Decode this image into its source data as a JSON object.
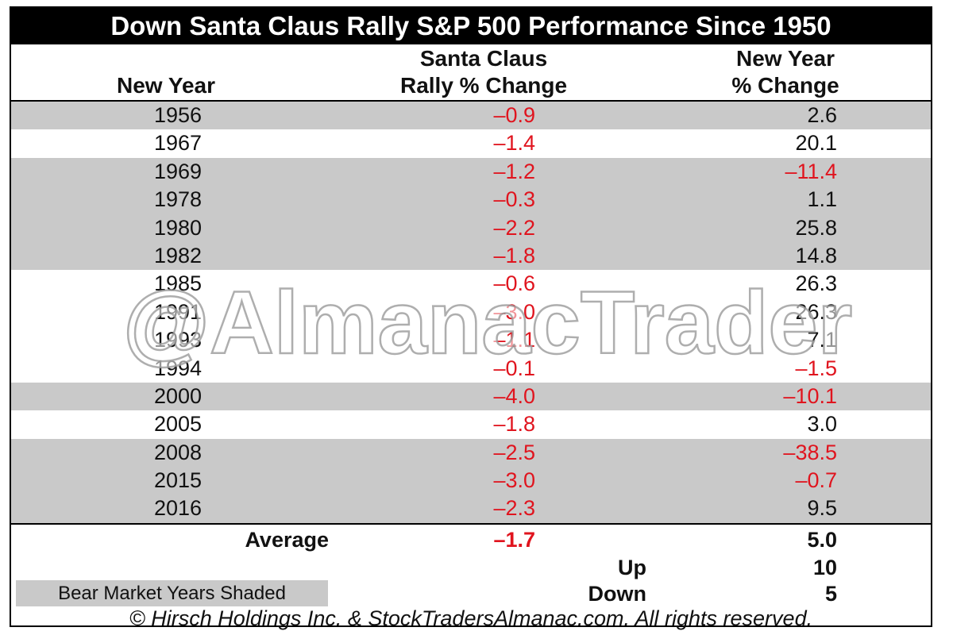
{
  "title": "Down Santa Claus Rally S&P 500 Performance Since 1950",
  "headers": {
    "year": "New Year",
    "santa_line1": "Santa Claus",
    "santa_line2": "Rally % Change",
    "ny_line1": "New Year",
    "ny_line2": "% Change"
  },
  "colors": {
    "negative": "#e0141e",
    "shade": "#c9c9c9",
    "title_bg": "#000000"
  },
  "chart_data": {
    "type": "table",
    "title": "Down Santa Claus Rally S&P 500 Performance Since 1950",
    "columns": [
      "New Year",
      "Santa Claus Rally % Change",
      "New Year % Change"
    ],
    "rows": [
      {
        "year": "1956",
        "santa": "–0.9",
        "ny": "2.6",
        "bear": true
      },
      {
        "year": "1967",
        "santa": "–1.4",
        "ny": "20.1",
        "bear": false
      },
      {
        "year": "1969",
        "santa": "–1.2",
        "ny": "–11.4",
        "bear": true
      },
      {
        "year": "1978",
        "santa": "–0.3",
        "ny": "1.1",
        "bear": true
      },
      {
        "year": "1980",
        "santa": "–2.2",
        "ny": "25.8",
        "bear": true
      },
      {
        "year": "1982",
        "santa": "–1.8",
        "ny": "14.8",
        "bear": true
      },
      {
        "year": "1985",
        "santa": "–0.6",
        "ny": "26.3",
        "bear": false
      },
      {
        "year": "1991",
        "santa": "–3.0",
        "ny": "26.3",
        "bear": false
      },
      {
        "year": "1993",
        "santa": "–1.1",
        "ny": "7.1",
        "bear": false
      },
      {
        "year": "1994",
        "santa": "–0.1",
        "ny": "–1.5",
        "bear": false
      },
      {
        "year": "2000",
        "santa": "–4.0",
        "ny": "–10.1",
        "bear": true
      },
      {
        "year": "2005",
        "santa": "–1.8",
        "ny": "3.0",
        "bear": false
      },
      {
        "year": "2008",
        "santa": "–2.5",
        "ny": "–38.5",
        "bear": true
      },
      {
        "year": "2015",
        "santa": "–3.0",
        "ny": "–0.7",
        "bear": true
      },
      {
        "year": "2016",
        "santa": "–2.3",
        "ny": "9.5",
        "bear": true
      }
    ],
    "summary": {
      "average_label": "Average",
      "average_santa": "–1.7",
      "average_ny": "5.0",
      "up_label": "Up",
      "up_value": "10",
      "down_label": "Down",
      "down_value": "5"
    }
  },
  "legend_note": "Bear Market Years Shaded",
  "credit": "© Hirsch Holdings Inc. & StockTradersAlmanac.com. All rights reserved.",
  "watermark": "@AlmanacTrader"
}
